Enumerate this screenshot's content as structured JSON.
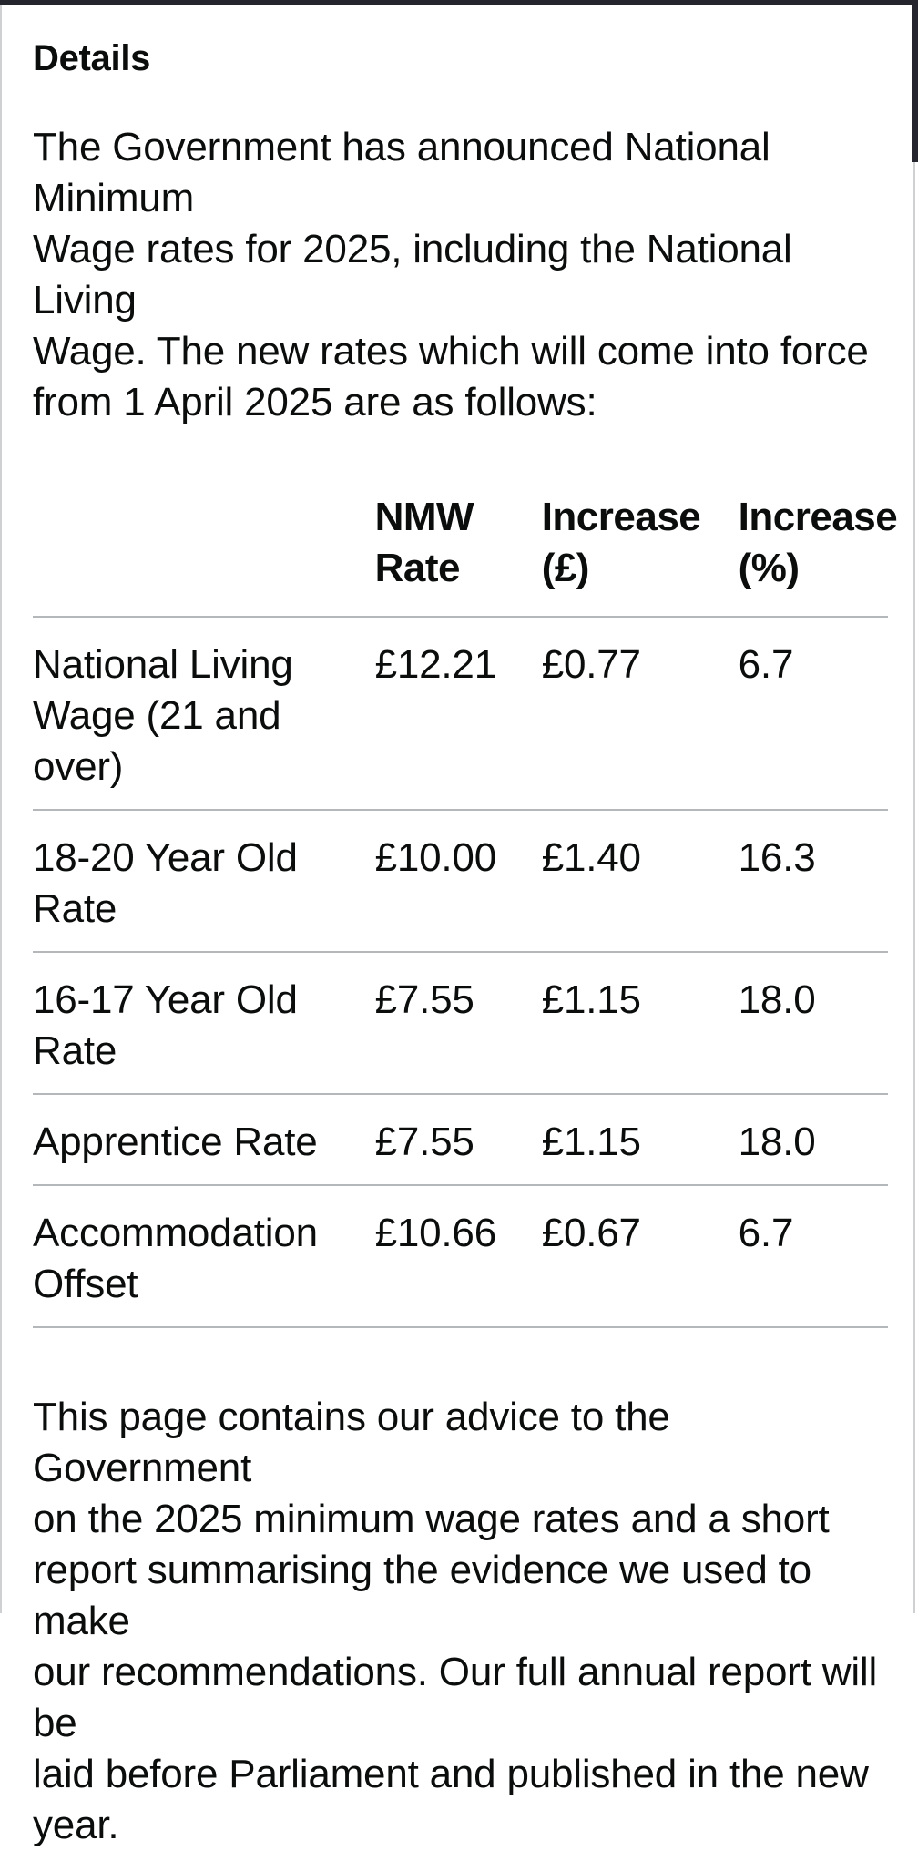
{
  "page": {
    "heading": "Details",
    "intro": "The Government has announced National Minimum\nWage rates for 2025, including the National Living\nWage. The new rates which will come into force\nfrom 1 April 2025 are as follows:",
    "footer": "This page contains our advice to the Government\non the 2025 minimum wage rates and a short\nreport summarising the evidence we used to make\nour recommendations. Our full annual report will be\nlaid before Parliament and published in the new\nyear."
  },
  "table": {
    "columns": [
      "",
      "NMW Rate",
      "Increase (£)",
      "Increase (%)"
    ],
    "rows": [
      {
        "label": "National Living Wage (21 and over)",
        "rate": "£12.21",
        "increase_gbp": "£0.77",
        "increase_pct": "6.7"
      },
      {
        "label": "18-20 Year Old Rate",
        "rate": "£10.00",
        "increase_gbp": "£1.40",
        "increase_pct": "16.3"
      },
      {
        "label": "16-17 Year Old Rate",
        "rate": "£7.55",
        "increase_gbp": "£1.15",
        "increase_pct": "18.0"
      },
      {
        "label": "Apprentice Rate",
        "rate": "£7.55",
        "increase_gbp": "£1.15",
        "increase_pct": "18.0"
      },
      {
        "label": "Accommodation Offset",
        "rate": "£10.66",
        "increase_gbp": "£0.67",
        "increase_pct": "6.7"
      }
    ]
  },
  "colors": {
    "text": "#0b0c0c",
    "table_border": "#b5b8ba",
    "top_bar": "#25252e",
    "scrollbar_thumb": "#26262f",
    "side_line": "#cfd0d2",
    "background": "#ffffff"
  }
}
